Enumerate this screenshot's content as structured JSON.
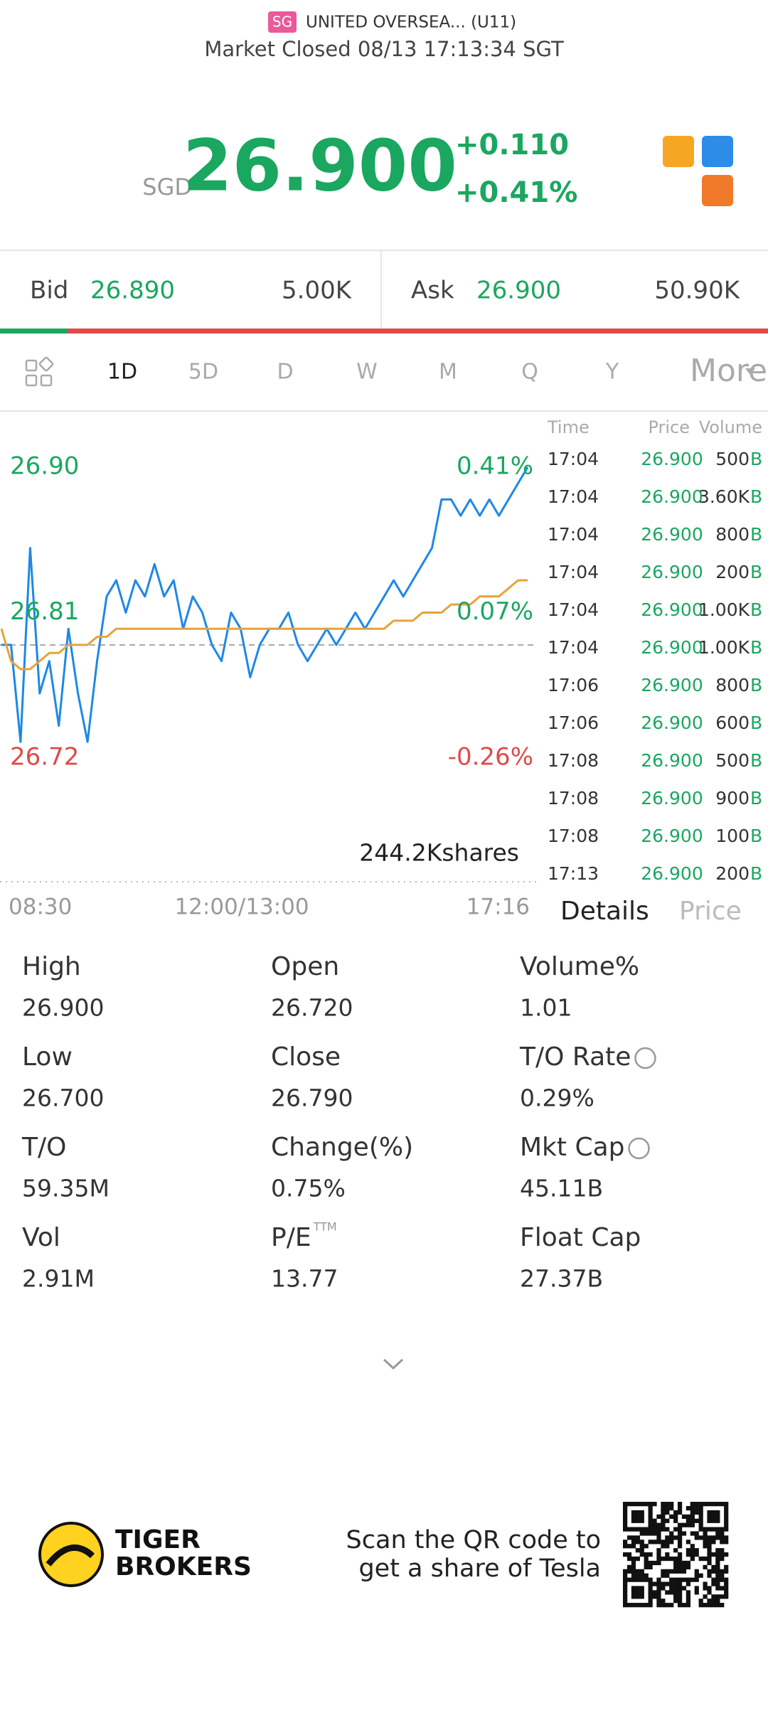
{
  "header": {
    "badge": "SG",
    "title": "UNITED OVERSEA... (U11)",
    "status": "Market Closed 08/13 17:13:34 SGT"
  },
  "quote": {
    "currency": "SGD",
    "price": "26.900",
    "change": "+0.110",
    "change_pct": "+0.41%"
  },
  "bid": {
    "label": "Bid",
    "price": "26.890",
    "size": "5.00K"
  },
  "ask": {
    "label": "Ask",
    "price": "26.900",
    "size": "50.90K"
  },
  "tabs": [
    "1D",
    "5D",
    "D",
    "W",
    "M",
    "Q",
    "Y",
    "More"
  ],
  "chart": {
    "type": "line",
    "ylim": [
      26.72,
      26.9
    ],
    "yticks": [
      {
        "value": 26.9,
        "label": "26.90",
        "pct": "0.41%"
      },
      {
        "value": 26.81,
        "label": "26.81",
        "pct": "0.07%"
      },
      {
        "value": 26.72,
        "label": "26.72",
        "pct": "-0.26%"
      }
    ],
    "prev_close": 26.79,
    "xticks": [
      "08:30",
      "12:00/13:00",
      "17:16"
    ],
    "volume_label": "244.2Kshares",
    "series": [
      {
        "name": "price",
        "color": "#1e88e5",
        "values": [
          26.79,
          26.79,
          26.73,
          26.85,
          26.76,
          26.78,
          26.74,
          26.8,
          26.76,
          26.73,
          26.78,
          26.82,
          26.83,
          26.81,
          26.83,
          26.82,
          26.84,
          26.82,
          26.83,
          26.8,
          26.82,
          26.81,
          26.79,
          26.78,
          26.81,
          26.8,
          26.77,
          26.79,
          26.8,
          26.8,
          26.81,
          26.79,
          26.78,
          26.79,
          26.8,
          26.79,
          26.8,
          26.81,
          26.8,
          26.81,
          26.82,
          26.83,
          26.82,
          26.83,
          26.84,
          26.85,
          26.88,
          26.88,
          26.87,
          26.88,
          26.87,
          26.88,
          26.87,
          26.88,
          26.89,
          26.9
        ]
      },
      {
        "name": "average",
        "color": "#e8a23a",
        "values": [
          26.8,
          26.78,
          26.775,
          26.775,
          26.78,
          26.785,
          26.785,
          26.79,
          26.79,
          26.79,
          26.795,
          26.795,
          26.8,
          26.8,
          26.8,
          26.8,
          26.8,
          26.8,
          26.8,
          26.8,
          26.8,
          26.8,
          26.8,
          26.8,
          26.8,
          26.8,
          26.8,
          26.8,
          26.8,
          26.8,
          26.8,
          26.8,
          26.8,
          26.8,
          26.8,
          26.8,
          26.8,
          26.8,
          26.8,
          26.8,
          26.8,
          26.805,
          26.805,
          26.805,
          26.81,
          26.81,
          26.81,
          26.815,
          26.815,
          26.815,
          26.82,
          26.82,
          26.82,
          26.825,
          26.83,
          26.83
        ]
      }
    ]
  },
  "trades": {
    "header": [
      "Time",
      "Price",
      "Volume"
    ],
    "rows": [
      [
        "17:04",
        "26.900",
        "500",
        "B"
      ],
      [
        "17:04",
        "26.900",
        "3.60K",
        "B"
      ],
      [
        "17:04",
        "26.900",
        "800",
        "B"
      ],
      [
        "17:04",
        "26.900",
        "200",
        "B"
      ],
      [
        "17:04",
        "26.900",
        "1.00K",
        "B"
      ],
      [
        "17:04",
        "26.900",
        "1.00K",
        "B"
      ],
      [
        "17:06",
        "26.900",
        "800",
        "B"
      ],
      [
        "17:06",
        "26.900",
        "600",
        "B"
      ],
      [
        "17:08",
        "26.900",
        "500",
        "B"
      ],
      [
        "17:08",
        "26.900",
        "900",
        "B"
      ],
      [
        "17:08",
        "26.900",
        "100",
        "B"
      ],
      [
        "17:13",
        "26.900",
        "200",
        "B"
      ]
    ]
  },
  "detail_tabs": [
    "Details",
    "Price"
  ],
  "stats": [
    [
      {
        "label": "High",
        "value": "26.900"
      },
      {
        "label": "Open",
        "value": "26.720"
      },
      {
        "label": "Volume%",
        "value": "1.01"
      }
    ],
    [
      {
        "label": "Low",
        "value": "26.700"
      },
      {
        "label": "Close",
        "value": "26.790"
      },
      {
        "label": "T/O Rate",
        "value": "0.29%"
      }
    ],
    [
      {
        "label": "T/O",
        "value": "59.35M"
      },
      {
        "label": "Change(%)",
        "value": "0.75%"
      },
      {
        "label": "Mkt Cap",
        "value": "45.11B"
      }
    ],
    [
      {
        "label": "Vol",
        "value": "2.91M"
      },
      {
        "label": "P/E",
        "sup": "TTM",
        "value": "13.77"
      },
      {
        "label": "Float Cap",
        "value": "27.37B"
      }
    ]
  ],
  "footer": {
    "brand": [
      "TIGER",
      "BROKERS"
    ],
    "promo": [
      "Scan the QR code to",
      "get a share of Tesla"
    ]
  }
}
